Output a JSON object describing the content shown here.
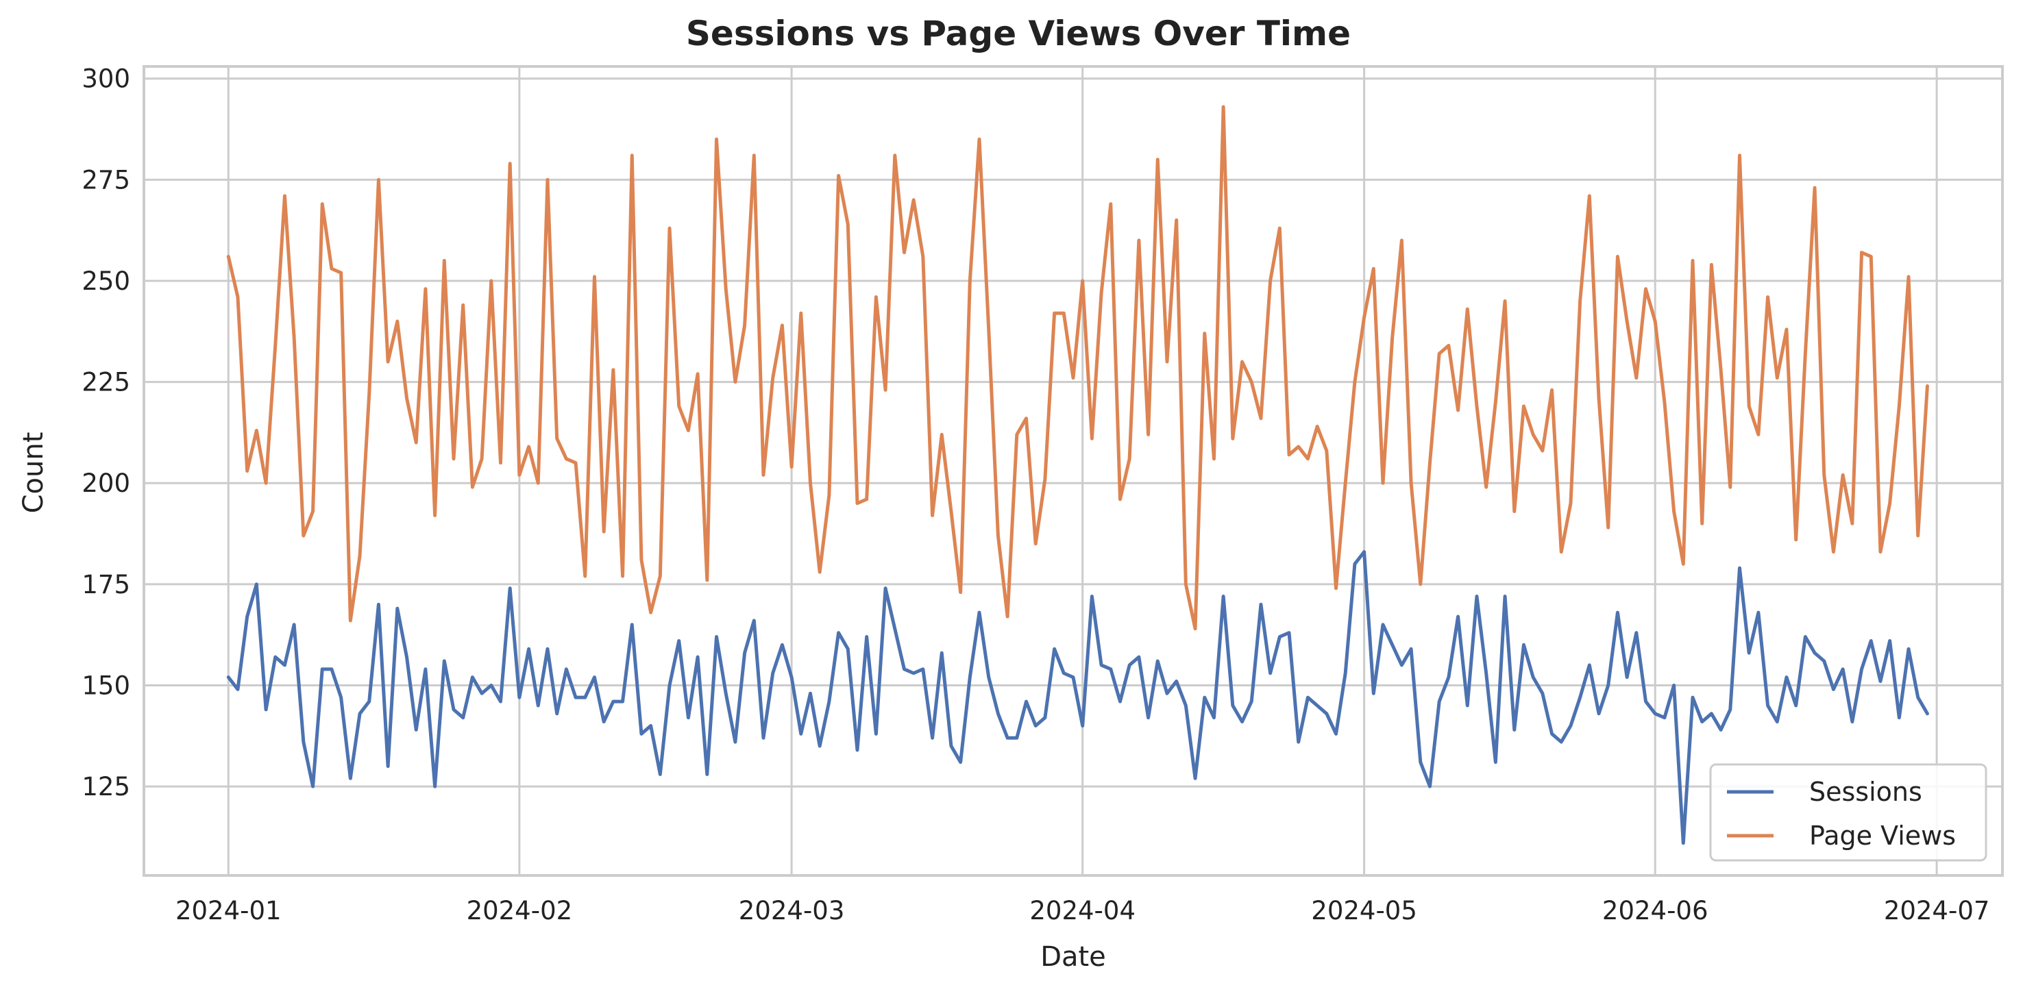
{
  "chart_data": {
    "type": "line",
    "title": "Sessions vs Page Views Over Time",
    "xlabel": "Date",
    "ylabel": "Count",
    "x_start": "2024-01-01",
    "x_end": "2024-06-29",
    "xlim": [
      "2023-12-23",
      "2024-07-08"
    ],
    "ylim": [
      103,
      303
    ],
    "x_ticks": [
      {
        "date": "2024-01-01",
        "label": "2024-01"
      },
      {
        "date": "2024-02-01",
        "label": "2024-02"
      },
      {
        "date": "2024-03-01",
        "label": "2024-03"
      },
      {
        "date": "2024-04-01",
        "label": "2024-04"
      },
      {
        "date": "2024-05-01",
        "label": "2024-05"
      },
      {
        "date": "2024-06-01",
        "label": "2024-06"
      },
      {
        "date": "2024-07-01",
        "label": "2024-07"
      }
    ],
    "y_ticks": [
      125,
      150,
      175,
      200,
      225,
      250,
      275,
      300
    ],
    "grid": true,
    "legend_position": "lower-right",
    "series": [
      {
        "name": "Sessions",
        "color": "#4c72b0",
        "values": [
          152,
          149,
          167,
          175,
          144,
          157,
          155,
          165,
          136,
          125,
          154,
          154,
          147,
          127,
          143,
          146,
          170,
          130,
          169,
          157,
          139,
          154,
          125,
          156,
          144,
          142,
          152,
          148,
          150,
          146,
          174,
          147,
          159,
          145,
          159,
          143,
          154,
          147,
          147,
          152,
          141,
          146,
          146,
          165,
          138,
          140,
          128,
          150,
          161,
          142,
          157,
          128,
          162,
          148,
          136,
          158,
          166,
          137,
          153,
          160,
          152,
          138,
          148,
          135,
          146,
          163,
          159,
          134,
          162,
          138,
          174,
          164,
          154,
          153,
          154,
          137,
          158,
          135,
          131,
          152,
          168,
          152,
          143,
          137,
          137,
          146,
          140,
          142,
          159,
          153,
          152,
          140,
          172,
          155,
          154,
          146,
          155,
          157,
          142,
          156,
          148,
          151,
          145,
          127,
          147,
          142,
          172,
          145,
          141,
          146,
          170,
          153,
          162,
          163,
          136,
          147,
          145,
          143,
          138,
          153,
          180,
          183,
          148,
          165,
          160,
          155,
          159,
          131,
          125,
          146,
          152,
          167,
          145,
          172,
          153,
          131,
          172,
          139,
          160,
          152,
          148,
          138,
          136,
          140,
          147,
          155,
          143,
          150,
          168,
          152,
          163,
          146,
          143,
          142,
          150,
          111,
          147,
          141,
          143,
          139,
          144,
          179,
          158,
          168,
          145,
          141,
          152,
          145,
          162,
          158,
          156,
          149,
          154,
          141,
          154,
          161,
          151,
          161,
          142,
          159,
          147,
          143
        ]
      },
      {
        "name": "Page Views",
        "color": "#dd8452",
        "values": [
          256,
          246,
          203,
          213,
          200,
          234,
          271,
          236,
          187,
          193,
          269,
          253,
          252,
          166,
          182,
          222,
          275,
          230,
          240,
          221,
          210,
          248,
          192,
          255,
          206,
          244,
          199,
          206,
          250,
          205,
          279,
          202,
          209,
          200,
          275,
          211,
          206,
          205,
          177,
          251,
          188,
          228,
          177,
          281,
          181,
          168,
          177,
          263,
          219,
          213,
          227,
          176,
          285,
          248,
          225,
          239,
          281,
          202,
          226,
          239,
          204,
          242,
          200,
          178,
          197,
          276,
          264,
          195,
          196,
          246,
          223,
          281,
          257,
          270,
          256,
          192,
          212,
          193,
          173,
          250,
          285,
          238,
          187,
          167,
          212,
          216,
          185,
          201,
          242,
          242,
          226,
          250,
          211,
          247,
          269,
          196,
          206,
          260,
          212,
          280,
          230,
          265,
          175,
          164,
          237,
          206,
          293,
          211,
          230,
          225,
          216,
          250,
          263,
          207,
          209,
          206,
          214,
          208,
          174,
          200,
          225,
          241,
          253,
          200,
          236,
          260,
          200,
          175,
          205,
          232,
          234,
          218,
          243,
          219,
          199,
          220,
          245,
          193,
          219,
          212,
          208,
          223,
          183,
          195,
          245,
          271,
          221,
          189,
          256,
          240,
          226,
          248,
          240,
          220,
          193,
          180,
          255,
          190,
          254,
          228,
          199,
          281,
          219,
          212,
          246,
          226,
          238,
          186,
          232,
          273,
          202,
          183,
          202,
          190,
          257,
          256,
          183,
          195,
          219,
          251,
          187,
          224
        ]
      }
    ]
  }
}
